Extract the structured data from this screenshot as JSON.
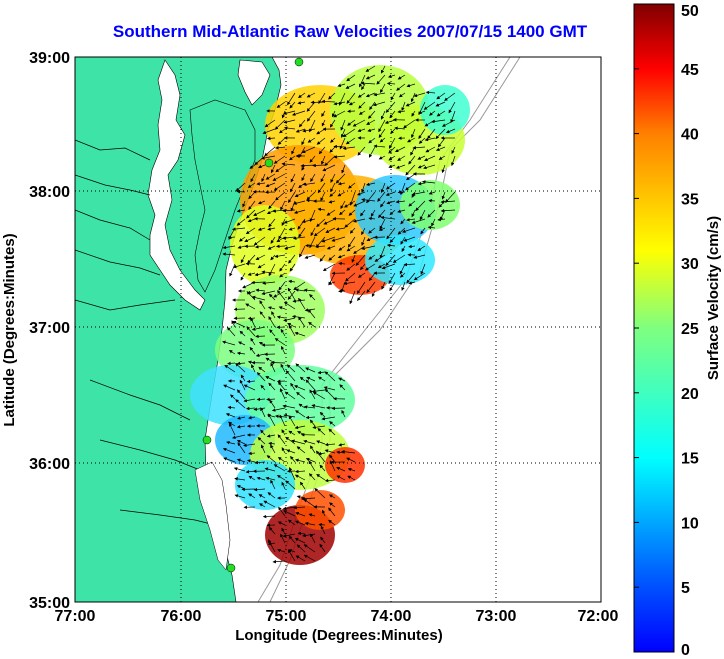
{
  "title": "Southern Mid-Atlantic Raw Velocities 2007/07/15 1400 GMT",
  "map": {
    "xlabel": "Longitude (Degrees:Minutes)",
    "ylabel": "Latitude (Degrees:Minutes)",
    "x_ticks": [
      "77:00",
      "76:00",
      "75:00",
      "74:00",
      "73:00",
      "72:00"
    ],
    "y_ticks": [
      "39:00",
      "38:00",
      "37:00",
      "36:00",
      "35:00"
    ],
    "grid": "dotted"
  },
  "colorbar": {
    "label": "Surface Velocity (cm/s)",
    "ticks": [
      "50",
      "45",
      "40",
      "35",
      "30",
      "25",
      "20",
      "15",
      "10",
      "5",
      "0"
    ],
    "range": [
      0,
      50
    ],
    "colormap": "jet"
  },
  "colors": {
    "land": "#3ee3a8",
    "title": "#0000ff",
    "station": "#22dd22"
  }
}
